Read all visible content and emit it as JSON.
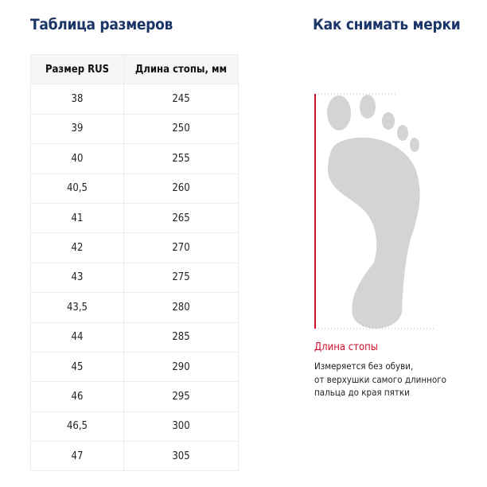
{
  "size_table": {
    "title": "Таблица размеров",
    "columns": [
      "Размер RUS",
      "Длина стопы, мм"
    ],
    "rows": [
      [
        "38",
        "245"
      ],
      [
        "39",
        "250"
      ],
      [
        "40",
        "255"
      ],
      [
        "40,5",
        "260"
      ],
      [
        "41",
        "265"
      ],
      [
        "42",
        "270"
      ],
      [
        "43",
        "275"
      ],
      [
        "43,5",
        "280"
      ],
      [
        "44",
        "285"
      ],
      [
        "45",
        "290"
      ],
      [
        "46",
        "295"
      ],
      [
        "46,5",
        "300"
      ],
      [
        "47",
        "305"
      ]
    ]
  },
  "measure": {
    "title": "Как снимать мерки",
    "label": "Длина стопы",
    "description_lines": [
      "Измеряется без обуви,",
      "от верхушки самого длинного",
      "пальца до края пятки"
    ],
    "icon": "foot-outline-icon",
    "accent_color": "#d0112b",
    "title_color": "#1b3568"
  }
}
